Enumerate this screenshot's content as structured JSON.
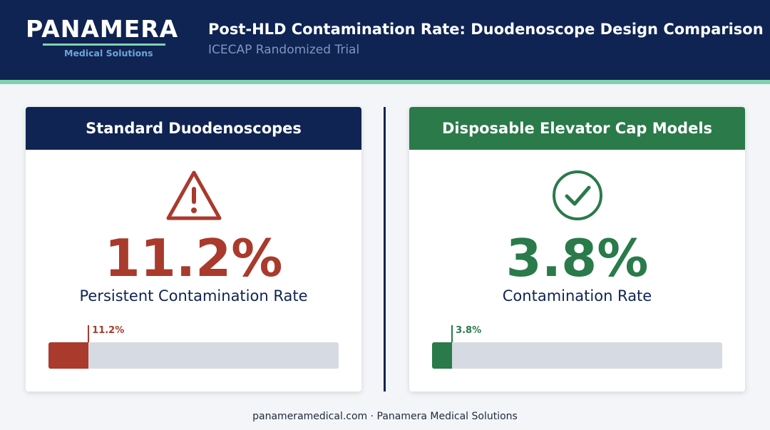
{
  "brand": {
    "name": "PANAMERA",
    "tagline": "Medical Solutions"
  },
  "header": {
    "title": "Post-HLD Contamination Rate: Duodenoscope Design Comparison",
    "subtitle": "ICECAP Randomized Trial"
  },
  "colors": {
    "navy": "#0f2452",
    "accent_mint": "#7fd3ae",
    "alert_red": "#a93a2c",
    "success_green": "#2a7a4a",
    "track_gray": "#d6dbe3"
  },
  "cards": [
    {
      "title": "Standard Duodenoscopes",
      "icon": "warning-triangle-icon",
      "value": "11.2%",
      "label": "Persistent Contamination Rate",
      "bar_label": "11.2%",
      "bar_fraction": 0.138
    },
    {
      "title": "Disposable Elevator Cap Models",
      "icon": "check-circle-icon",
      "value": "3.8%",
      "label": "Contamination Rate",
      "bar_label": "3.8%",
      "bar_fraction": 0.069
    }
  ],
  "footer": {
    "text": "panameramedical.com · Panamera Medical Solutions"
  }
}
